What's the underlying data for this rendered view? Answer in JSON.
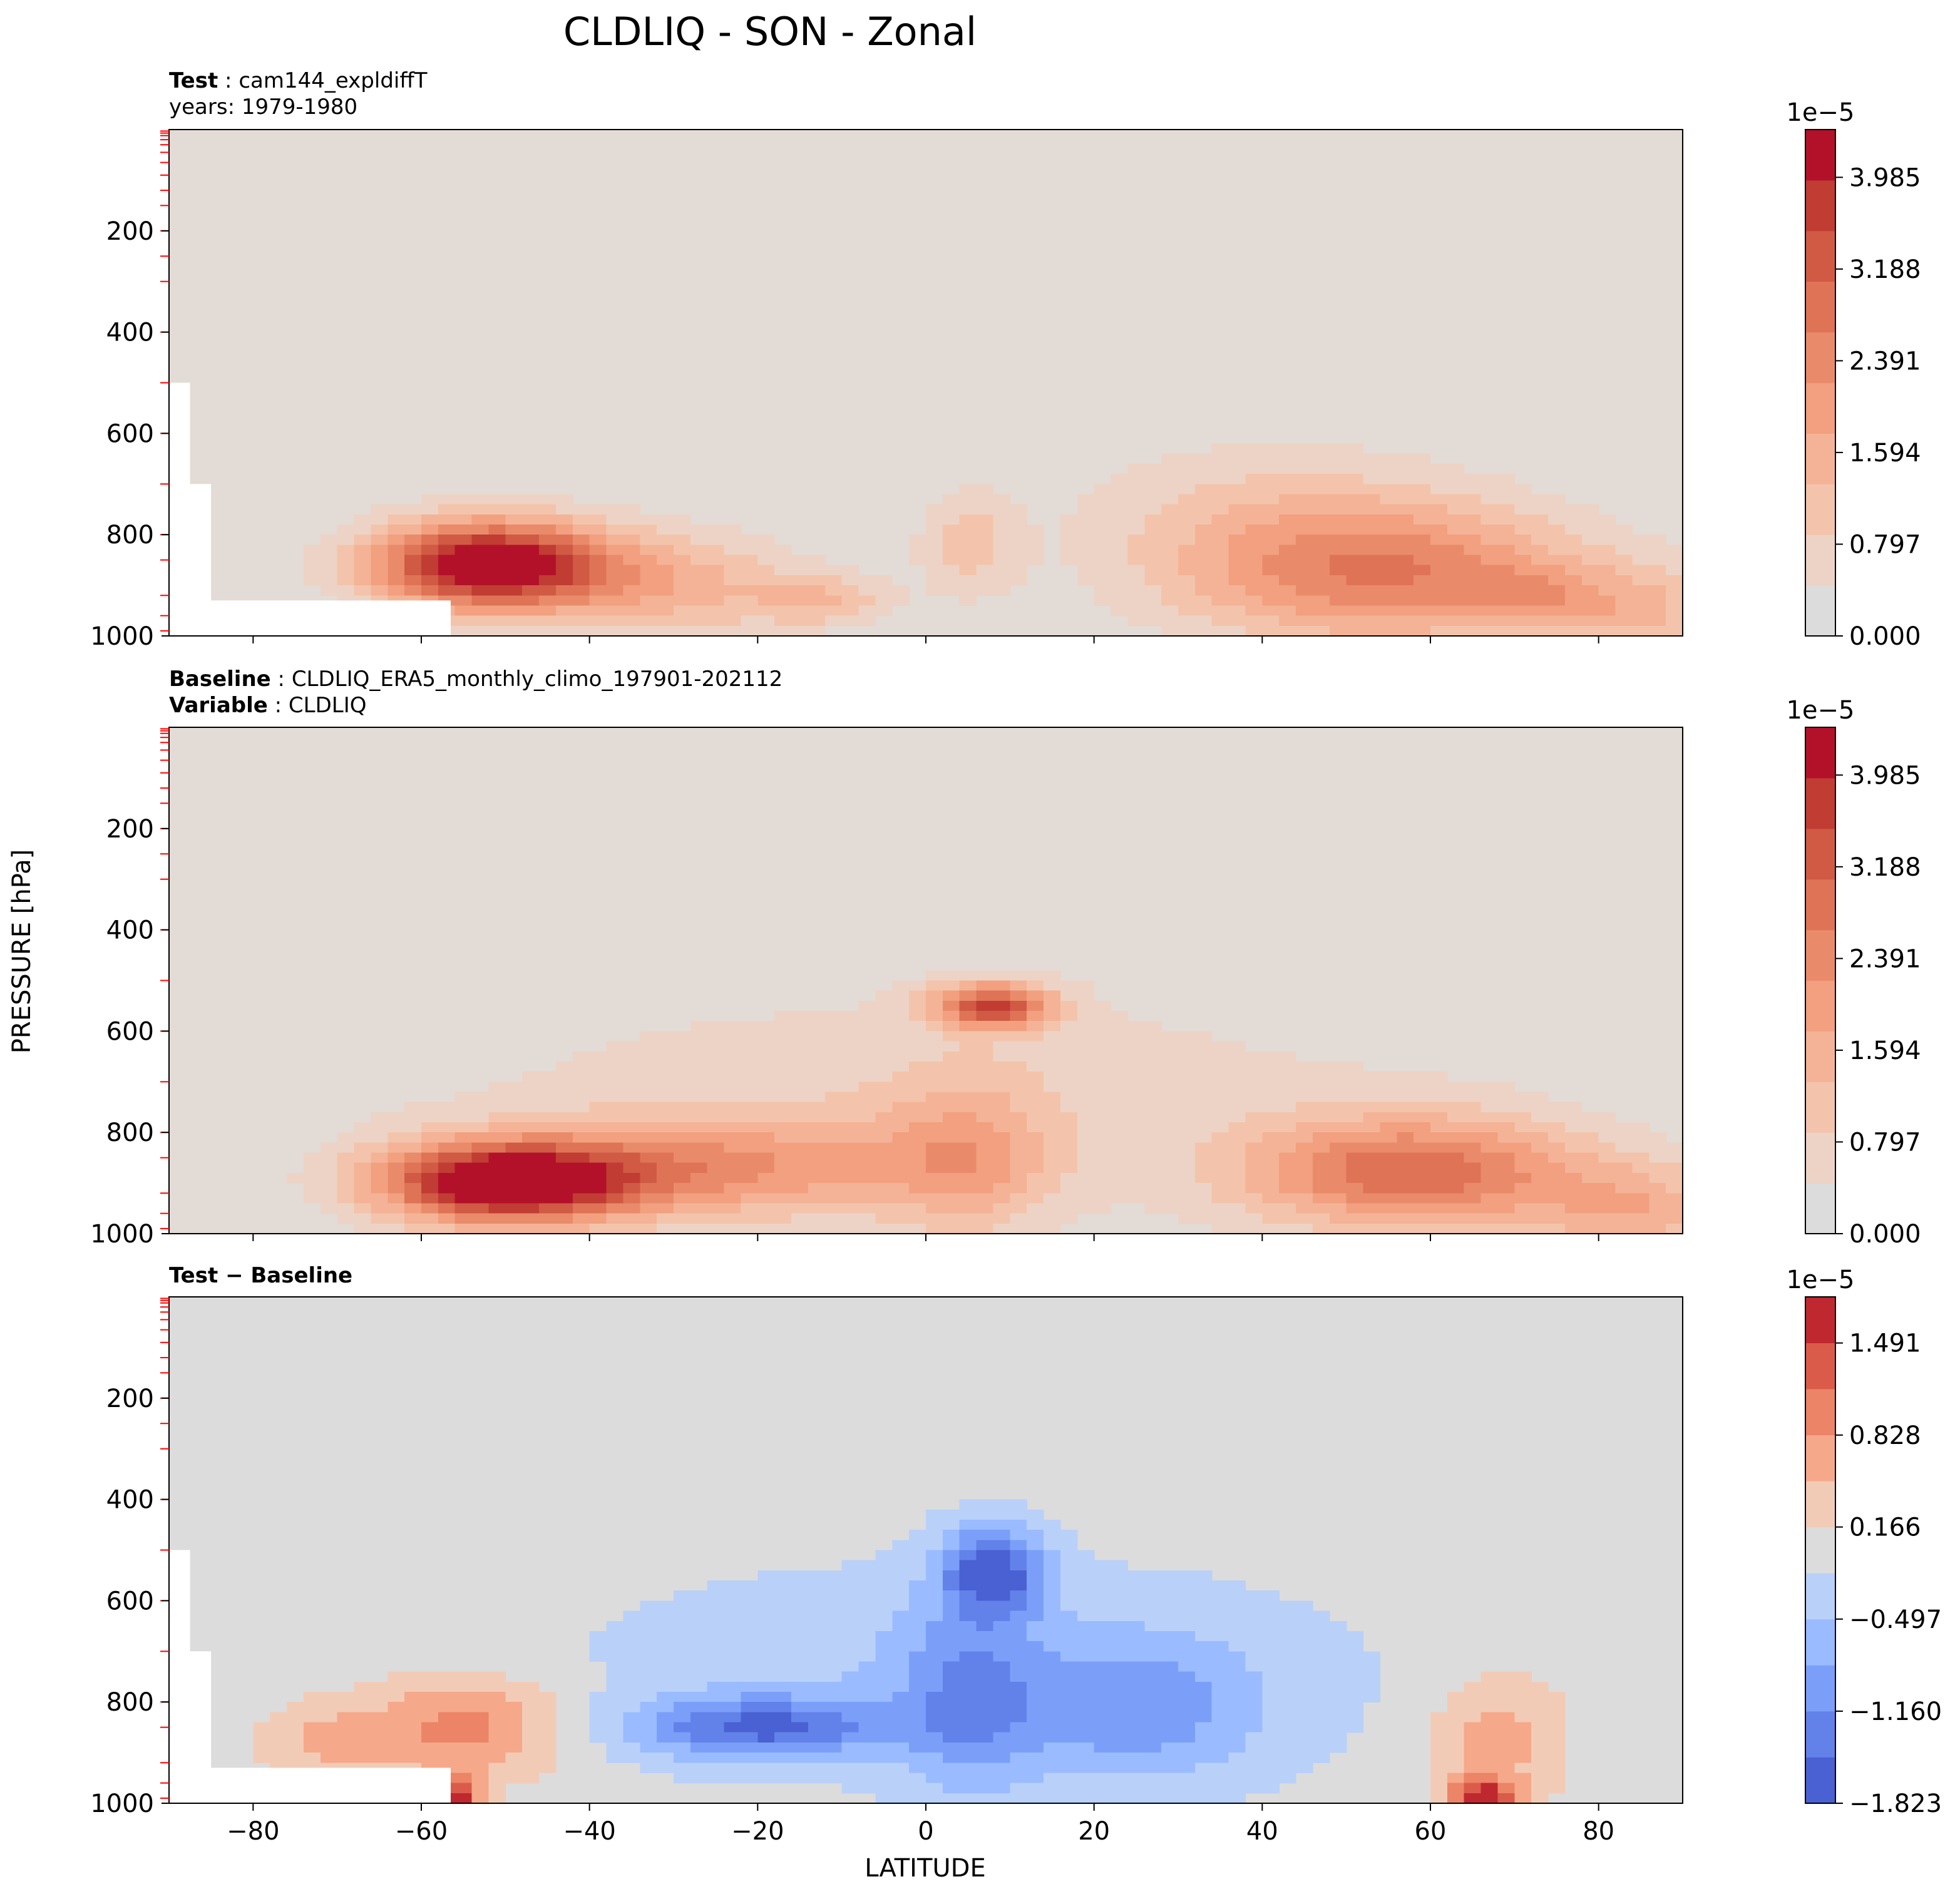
{
  "title": "CLDLIQ - SON - Zonal",
  "colors": {
    "background_seq": "#e2dbd6",
    "background_div": "#dcdcdc",
    "missing": "#ffffff",
    "axis_tick_marker": "#ff0000"
  },
  "chart_data": [
    {
      "type": "heatmap",
      "panel": "test",
      "header": {
        "k1": "Test",
        "v1": "cam144_expldiffT",
        "line2": "years: 1979-1980"
      },
      "xlabel": "LATITUDE",
      "ylabel": "PRESSURE [hPa]",
      "xlim": [
        -90,
        90
      ],
      "ylim": [
        1000,
        0
      ],
      "xticks": [
        -80,
        -60,
        -40,
        -20,
        0,
        20,
        40,
        60,
        80
      ],
      "yticks": [
        200,
        400,
        600,
        800,
        1000
      ],
      "colorbar": {
        "offset_label": "1e−5",
        "min": 0,
        "max": 4.4,
        "tick_values": [
          0,
          0.797,
          1.594,
          2.391,
          3.188,
          3.985
        ],
        "tick_labels": [
          "0.000",
          "0.797",
          "1.594",
          "2.391",
          "3.188",
          "3.985"
        ],
        "colors": [
          "#dcdcdc",
          "#ecd3c5",
          "#f3c4ab",
          "#f4b396",
          "#f2a07f",
          "#e98b6a",
          "#df7356",
          "#d05a44",
          "#c13c33",
          "#b3112a"
        ]
      },
      "levels_1e5": [
        0.4,
        0.8,
        1.2,
        1.6,
        2.0,
        2.4,
        2.8,
        3.2,
        3.6,
        4.0
      ],
      "features": [
        {
          "lat": -52,
          "p": 860,
          "sx": 14,
          "sy": 90,
          "amp": 4.3
        },
        {
          "lat": -30,
          "p": 900,
          "sx": 16,
          "sy": 110,
          "amp": 1.3
        },
        {
          "lat": -12,
          "p": 930,
          "sx": 8,
          "sy": 50,
          "amp": 1.0
        },
        {
          "lat": 5,
          "p": 820,
          "sx": 6,
          "sy": 110,
          "amp": 0.9
        },
        {
          "lat": 55,
          "p": 880,
          "sx": 24,
          "sy": 140,
          "amp": 2.2
        },
        {
          "lat": 72,
          "p": 920,
          "sx": 7,
          "sy": 60,
          "amp": 0.8
        },
        {
          "lat": 85,
          "p": 950,
          "sx": 10,
          "sy": 90,
          "amp": 1.1
        },
        {
          "lat": 40,
          "p": 760,
          "sx": 25,
          "sy": 170,
          "amp": 0.7
        }
      ]
    },
    {
      "type": "heatmap",
      "panel": "baseline",
      "header": {
        "k1": "Baseline",
        "v1": "CLDLIQ_ERA5_monthly_climo_197901-202112",
        "k2": "Variable",
        "v2": "CLDLIQ"
      },
      "xlabel": "LATITUDE",
      "ylabel": "PRESSURE [hPa]",
      "xlim": [
        -90,
        90
      ],
      "ylim": [
        1000,
        0
      ],
      "xticks": [
        -80,
        -60,
        -40,
        -20,
        0,
        20,
        40,
        60,
        80
      ],
      "yticks": [
        200,
        400,
        600,
        800,
        1000
      ],
      "colorbar": {
        "offset_label": "1e−5",
        "min": 0,
        "max": 4.4,
        "tick_values": [
          0,
          0.797,
          1.594,
          2.391,
          3.188,
          3.985
        ],
        "tick_labels": [
          "0.000",
          "0.797",
          "1.594",
          "2.391",
          "3.188",
          "3.985"
        ],
        "colors": [
          "#dcdcdc",
          "#ecd3c5",
          "#f3c4ab",
          "#f4b396",
          "#f2a07f",
          "#e98b6a",
          "#df7356",
          "#d05a44",
          "#c13c33",
          "#b3112a"
        ]
      },
      "levels_1e5": [
        0.4,
        0.8,
        1.2,
        1.6,
        2.0,
        2.4,
        2.8,
        3.2,
        3.6,
        4.0
      ],
      "features": [
        {
          "lat": -50,
          "p": 900,
          "sx": 15,
          "sy": 80,
          "amp": 4.2
        },
        {
          "lat": -25,
          "p": 870,
          "sx": 25,
          "sy": 100,
          "amp": 1.7
        },
        {
          "lat": 8,
          "p": 550,
          "sx": 7,
          "sy": 45,
          "amp": 2.9
        },
        {
          "lat": 5,
          "p": 850,
          "sx": 10,
          "sy": 160,
          "amp": 1.2
        },
        {
          "lat": 58,
          "p": 880,
          "sx": 20,
          "sy": 110,
          "amp": 2.6
        },
        {
          "lat": 85,
          "p": 960,
          "sx": 12,
          "sy": 100,
          "amp": 1.3
        },
        {
          "lat": 0,
          "p": 720,
          "sx": 70,
          "sy": 260,
          "amp": 0.6
        }
      ]
    },
    {
      "type": "heatmap",
      "panel": "difference",
      "header": {
        "k1": "Test − Baseline"
      },
      "xlabel": "LATITUDE",
      "ylabel": "PRESSURE [hPa]",
      "xlim": [
        -90,
        90
      ],
      "ylim": [
        1000,
        0
      ],
      "xticks": [
        -80,
        -60,
        -40,
        -20,
        0,
        20,
        40,
        60,
        80
      ],
      "yticks": [
        200,
        400,
        600,
        800,
        1000
      ],
      "colorbar": {
        "offset_label": "1e−5",
        "min": -1.823,
        "max": 1.823,
        "tick_values": [
          -1.823,
          -1.16,
          -0.497,
          0.166,
          0.828,
          1.491
        ],
        "tick_labels": [
          "−1.823",
          "−1.160",
          "−0.497",
          "0.166",
          "0.828",
          "1.491"
        ],
        "colors": [
          "#4961d2",
          "#6282ea",
          "#7b9ff9",
          "#9abbff",
          "#b9d0f9",
          "#dcdcdc",
          "#f2cbb7",
          "#f5a98a",
          "#ec8467",
          "#db5b4a",
          "#c0282f"
        ]
      },
      "levels_1e5": [
        -1.823,
        -1.492,
        -1.16,
        -0.829,
        -0.497,
        -0.166,
        0.166,
        0.497,
        0.829,
        1.16,
        1.492,
        1.823
      ],
      "features": [
        {
          "lat": -55,
          "p": 850,
          "sx": 12,
          "sy": 100,
          "amp": 1.0
        },
        {
          "lat": -72,
          "p": 880,
          "sx": 8,
          "sy": 80,
          "amp": 0.5
        },
        {
          "lat": -20,
          "p": 850,
          "sx": 15,
          "sy": 60,
          "amp": -1.4
        },
        {
          "lat": 8,
          "p": 540,
          "sx": 6,
          "sy": 90,
          "amp": -1.6
        },
        {
          "lat": 5,
          "p": 800,
          "sx": 8,
          "sy": 200,
          "amp": -0.8
        },
        {
          "lat": 25,
          "p": 820,
          "sx": 15,
          "sy": 140,
          "amp": -0.8
        },
        {
          "lat": 5,
          "p": 740,
          "sx": 48,
          "sy": 220,
          "amp": -0.45
        },
        {
          "lat": 68,
          "p": 870,
          "sx": 8,
          "sy": 130,
          "amp": 0.7
        },
        {
          "lat": 66,
          "p": 990,
          "sx": 4,
          "sy": 40,
          "amp": 1.6
        },
        {
          "lat": -56,
          "p": 990,
          "sx": 3,
          "sy": 40,
          "amp": 1.6
        }
      ]
    }
  ]
}
